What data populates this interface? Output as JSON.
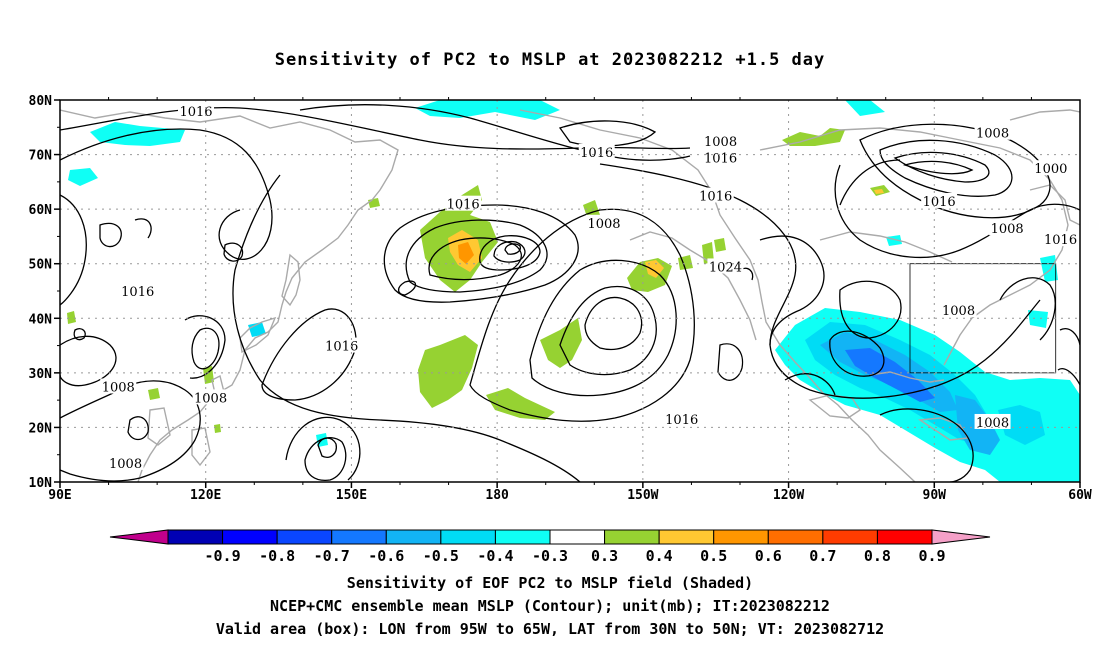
{
  "title": "Sensitivity of PC2 to MSLP at 2023082212 +1.5 day",
  "footer": {
    "line1": "Sensitivity of EOF PC2 to MSLP field (Shaded)",
    "line2": "NCEP+CMC ensemble mean MSLP (Contour); unit(mb); IT:2023082212",
    "line3": "Valid area (box): LON from 95W to 65W, LAT from 30N to 50N; VT: 2023082712"
  },
  "axes": {
    "lat_labels": [
      "80N",
      "70N",
      "60N",
      "50N",
      "40N",
      "30N",
      "20N",
      "10N"
    ],
    "lon_labels": [
      "90E",
      "120E",
      "150E",
      "180",
      "150W",
      "120W",
      "90W",
      "60W"
    ]
  },
  "colorbar": {
    "labels": [
      "-0.9",
      "-0.8",
      "-0.7",
      "-0.6",
      "-0.5",
      "-0.4",
      "-0.3",
      "0.3",
      "0.4",
      "0.5",
      "0.6",
      "0.7",
      "0.8",
      "0.9"
    ],
    "colors": [
      "#c0008c",
      "#0000b4",
      "#0000ff",
      "#0a46ff",
      "#1478ff",
      "#12b4f5",
      "#00dcf5",
      "#0ffff5",
      "#ffffff",
      "#96d232",
      "#ffc832",
      "#ff9600",
      "#ff6e00",
      "#ff3c00",
      "#ff0000",
      "#f5a0c8"
    ]
  },
  "contour_labels": [
    {
      "text": "1016",
      "lon": 118,
      "lat": 78
    },
    {
      "text": "1016",
      "lon": 200.5,
      "lat": 70.5
    },
    {
      "text": "1008",
      "lon": 226,
      "lat": 72.5
    },
    {
      "text": "1016",
      "lon": 226,
      "lat": 69.5
    },
    {
      "text": "1008",
      "lon": 282,
      "lat": 74
    },
    {
      "text": "1000",
      "lon": 294,
      "lat": 67.5
    },
    {
      "text": "1016",
      "lon": 173,
      "lat": 61
    },
    {
      "text": "1008",
      "lon": 202,
      "lat": 57.5
    },
    {
      "text": "1016",
      "lon": 225,
      "lat": 62.5
    },
    {
      "text": "1016",
      "lon": 271,
      "lat": 61.5
    },
    {
      "text": "1008",
      "lon": 285,
      "lat": 56.5
    },
    {
      "text": "1016",
      "lon": 296,
      "lat": 54.5
    },
    {
      "text": "1024",
      "lon": 227,
      "lat": 49.5
    },
    {
      "text": "1016",
      "lon": 106,
      "lat": 45
    },
    {
      "text": "1008",
      "lon": 275,
      "lat": 41.5
    },
    {
      "text": "1016",
      "lon": 148,
      "lat": 35
    },
    {
      "text": "1008",
      "lon": 102,
      "lat": 27.5
    },
    {
      "text": "1008",
      "lon": 121,
      "lat": 25.5
    },
    {
      "text": "1016",
      "lon": 218,
      "lat": 21.5
    },
    {
      "text": "1008",
      "lon": 282,
      "lat": 21
    },
    {
      "text": "1008",
      "lon": 103.5,
      "lat": 13.5
    }
  ],
  "valid_box": {
    "lon_min": -95,
    "lon_max": -65,
    "lat_min": 30,
    "lat_max": 50
  }
}
